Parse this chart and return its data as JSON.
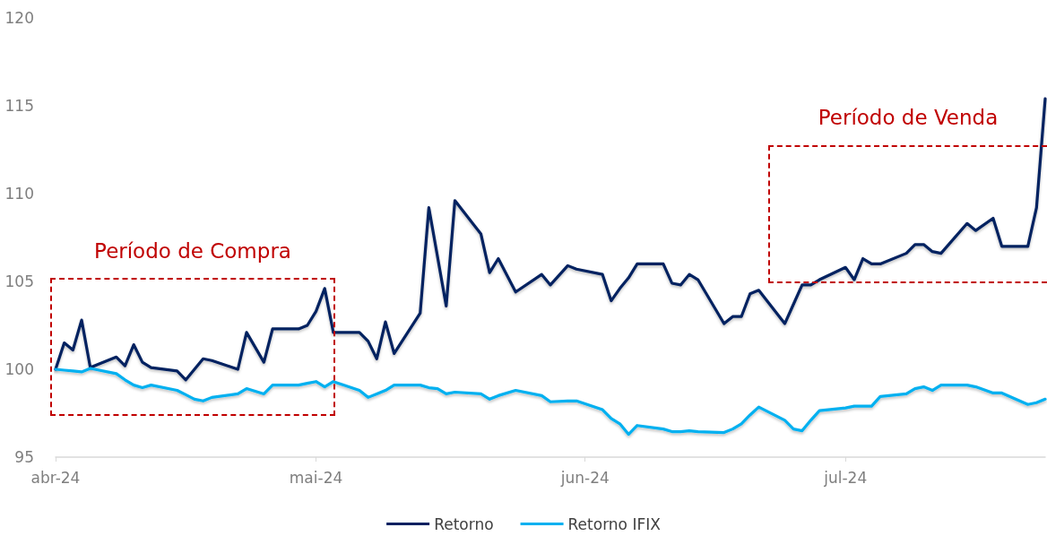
{
  "chart_data": {
    "type": "line",
    "x": [
      "2024-04-01",
      "2024-04-02",
      "2024-04-03",
      "2024-04-04",
      "2024-04-05",
      "2024-04-08",
      "2024-04-09",
      "2024-04-10",
      "2024-04-11",
      "2024-04-12",
      "2024-04-15",
      "2024-04-16",
      "2024-04-17",
      "2024-04-18",
      "2024-04-19",
      "2024-04-22",
      "2024-04-23",
      "2024-04-25",
      "2024-04-26",
      "2024-04-29",
      "2024-04-30",
      "2024-05-01",
      "2024-05-02",
      "2024-05-03",
      "2024-05-06",
      "2024-05-07",
      "2024-05-08",
      "2024-05-09",
      "2024-05-10",
      "2024-05-13",
      "2024-05-14",
      "2024-05-15",
      "2024-05-16",
      "2024-05-17",
      "2024-05-20",
      "2024-05-21",
      "2024-05-22",
      "2024-05-24",
      "2024-05-27",
      "2024-05-28",
      "2024-05-30",
      "2024-05-31",
      "2024-06-03",
      "2024-06-04",
      "2024-06-05",
      "2024-06-06",
      "2024-06-07",
      "2024-06-10",
      "2024-06-11",
      "2024-06-12",
      "2024-06-13",
      "2024-06-14",
      "2024-06-17",
      "2024-06-18",
      "2024-06-19",
      "2024-06-20",
      "2024-06-21",
      "2024-06-24",
      "2024-06-25",
      "2024-06-26",
      "2024-06-27",
      "2024-06-28",
      "2024-07-01",
      "2024-07-02",
      "2024-07-03",
      "2024-07-04",
      "2024-07-05",
      "2024-07-08",
      "2024-07-09",
      "2024-07-10",
      "2024-07-11",
      "2024-07-12",
      "2024-07-15",
      "2024-07-16",
      "2024-07-18",
      "2024-07-19",
      "2024-07-22",
      "2024-07-23",
      "2024-07-24"
    ],
    "series": [
      {
        "name": "Retorno",
        "color": "#002060",
        "values": [
          100,
          101.5,
          101.1,
          102.8,
          100.1,
          100.7,
          100.2,
          101.4,
          100.4,
          100.1,
          99.9,
          99.4,
          100,
          100.6,
          100.5,
          100,
          102.1,
          100.4,
          102.3,
          102.3,
          102.5,
          103.3,
          104.6,
          102.1,
          102.1,
          101.6,
          100.6,
          102.7,
          100.9,
          103.2,
          109.2,
          106.4,
          103.6,
          109.6,
          107.7,
          105.5,
          106.3,
          104.4,
          105.4,
          104.8,
          105.9,
          105.7,
          105.4,
          103.9,
          104.6,
          105.2,
          106,
          106,
          104.9,
          104.8,
          105.4,
          105.1,
          102.6,
          103,
          103,
          104.3,
          104.5,
          102.6,
          103.7,
          104.8,
          104.8,
          105.1,
          105.8,
          105.1,
          106.3,
          106,
          106,
          106.6,
          107.1,
          107.1,
          106.7,
          106.6,
          108.3,
          107.9,
          108.6,
          107,
          107,
          109.2,
          115.4
        ]
      },
      {
        "name": "Retorno IFIX",
        "color": "#00b0f0",
        "values": [
          100,
          99.95,
          99.9,
          99.85,
          100.05,
          99.75,
          99.4,
          99.1,
          98.95,
          99.1,
          98.8,
          98.55,
          98.3,
          98.2,
          98.4,
          98.6,
          98.9,
          98.6,
          99.1,
          99.1,
          99.2,
          99.3,
          99,
          99.3,
          98.8,
          98.4,
          98.6,
          98.8,
          99.1,
          99.1,
          98.95,
          98.9,
          98.6,
          98.7,
          98.6,
          98.3,
          98.5,
          98.8,
          98.5,
          98.15,
          98.2,
          98.2,
          97.7,
          97.2,
          96.9,
          96.3,
          96.8,
          96.6,
          96.45,
          96.45,
          96.5,
          96.45,
          96.4,
          96.6,
          96.9,
          97.4,
          97.85,
          97.1,
          96.6,
          96.5,
          97.1,
          97.65,
          97.8,
          97.9,
          97.9,
          97.9,
          98.45,
          98.6,
          98.9,
          99,
          98.8,
          99.1,
          99.1,
          99,
          98.65,
          98.65,
          98,
          98.1,
          98.3
        ]
      }
    ],
    "xlim": [
      "2024-04-01",
      "2024-07-24"
    ],
    "xticks": [
      {
        "value": "2024-04-01",
        "label": "abr-24"
      },
      {
        "value": "2024-05-01",
        "label": "mai-24"
      },
      {
        "value": "2024-06-01",
        "label": "jun-24"
      },
      {
        "value": "2024-07-01",
        "label": "jul-24"
      }
    ],
    "ylim": [
      95,
      120
    ],
    "yticks": [
      95,
      100,
      105,
      110,
      115,
      120
    ],
    "annotations": [
      "Período de Compra",
      "Período de Venda"
    ],
    "legend": "bottom",
    "grid": false,
    "marker": "none",
    "line_style": "solid"
  }
}
